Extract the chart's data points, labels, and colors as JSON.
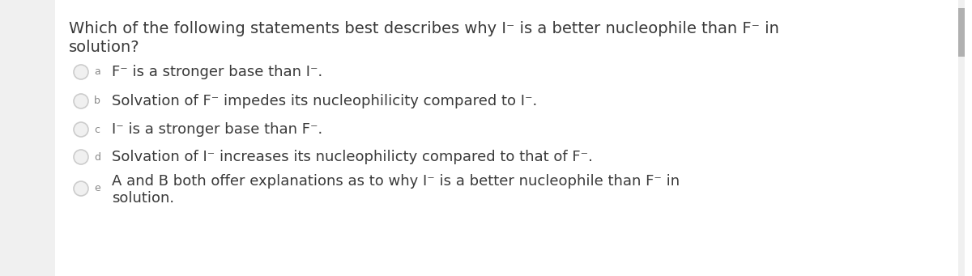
{
  "background_color": "#ffffff",
  "question_line1": "Which of the following statements best describes why I⁻ is a better nucleophile than F⁻ in",
  "question_line2": "solution?",
  "options": [
    {
      "label": "a",
      "text": "F⁻ is a stronger base than I⁻."
    },
    {
      "label": "b",
      "text": "Solvation of F⁻ impedes its nucleophilicity compared to I⁻."
    },
    {
      "label": "c",
      "text": "I⁻ is a stronger base than F⁻."
    },
    {
      "label": "d",
      "text": "Solvation of I⁻ increases its nucleophilicty compared to that of F⁻."
    },
    {
      "label": "e",
      "text_line1": "A and B both offer explanations as to why I⁻ is a better nucleophile than F⁻ in",
      "text_line2": "solution."
    }
  ],
  "question_fontsize": 14.0,
  "option_fontsize": 13.0,
  "label_fontsize": 9.0,
  "text_color": "#3a3a3a",
  "label_color": "#888888",
  "circle_edge_color": "#cccccc",
  "circle_face_color": "#f0f0f0",
  "scrollbar_bg": "#e0e0e0",
  "scrollbar_thumb": "#b0b0b0",
  "left_border_color": "#e0e0e0"
}
